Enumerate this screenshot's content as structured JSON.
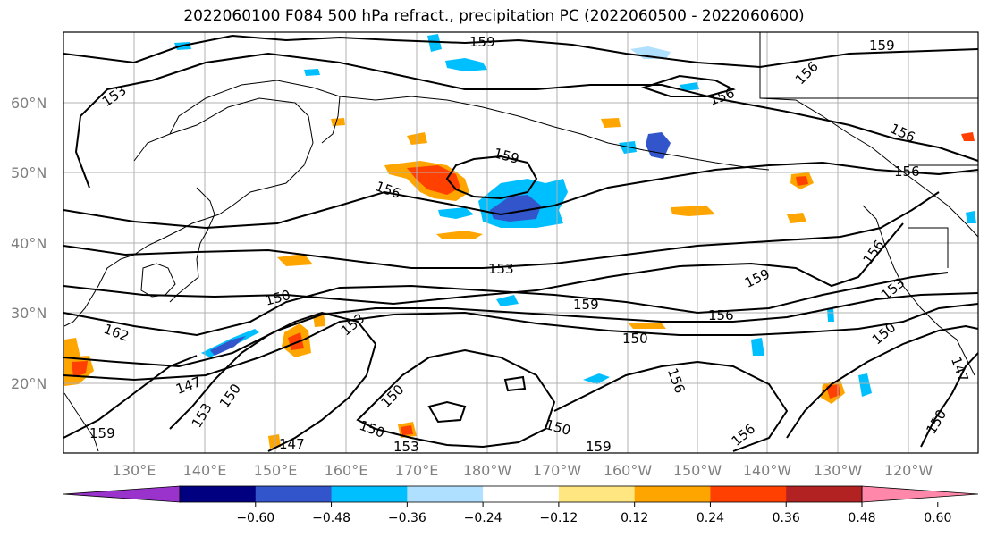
{
  "title": "2022060100 F084 500 hPa refract., precipitation PC (2022060500 - 2022060600)",
  "map": {
    "lat_labels": [
      "60°N",
      "50°N",
      "40°N",
      "30°N",
      "20°N"
    ],
    "lon_labels": [
      "130°E",
      "140°E",
      "150°E",
      "160°E",
      "170°E",
      "180°W",
      "170°W",
      "160°W",
      "150°W",
      "140°W",
      "130°W",
      "120°W"
    ],
    "contour_labels": [
      "159",
      "153",
      "156",
      "159",
      "156",
      "156",
      "156",
      "156",
      "159",
      "153",
      "150",
      "159",
      "156",
      "162",
      "153",
      "150",
      "159",
      "156",
      "153",
      "150",
      "147",
      "150",
      "153",
      "150",
      "156",
      "147",
      "159",
      "147",
      "150",
      "150",
      "153",
      "156",
      "150",
      "159"
    ]
  },
  "colorbar": {
    "ticks": [
      "−0.60",
      "−0.48",
      "−0.36",
      "−0.24",
      "−0.12",
      "0.12",
      "0.24",
      "0.36",
      "0.48",
      "0.60"
    ],
    "colors": [
      "#9933cc",
      "#000080",
      "#3355cc",
      "#00bfff",
      "#b0e0ff",
      "#ffffff",
      "#ffe680",
      "#ffa500",
      "#ff4000",
      "#b22222",
      "#ff88aa"
    ]
  }
}
